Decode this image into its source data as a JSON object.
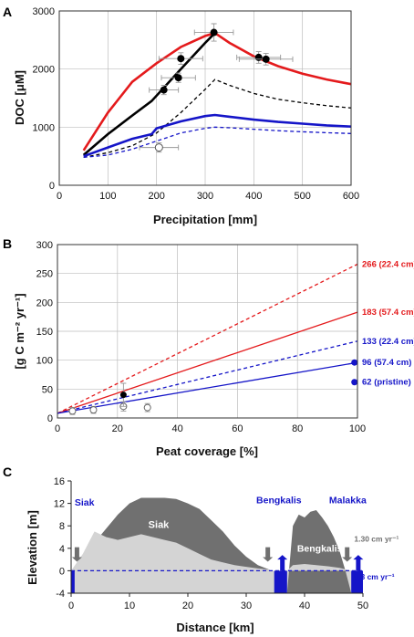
{
  "colors": {
    "red": "#e41a1c",
    "black": "#000000",
    "blue": "#1515c8",
    "darkgray": "#707070",
    "lightgray": "#d4d4d4",
    "errorbar": "#999999"
  },
  "chart_data": [
    {
      "panel": "A",
      "type": "line",
      "xlabel": "Precipitation [mm]",
      "ylabel": "DOC [μM]",
      "xlim": [
        0,
        600
      ],
      "ylim": [
        0,
        3000
      ],
      "xticks": [
        0,
        100,
        200,
        300,
        400,
        500,
        600
      ],
      "yticks": [
        0,
        1000,
        2000,
        3000
      ],
      "grid": true,
      "series": [
        {
          "style": "solid",
          "color": "red",
          "x": [
            50,
            100,
            150,
            200,
            250,
            300,
            320,
            350,
            400,
            450,
            500,
            550,
            600
          ],
          "y": [
            600,
            1250,
            1780,
            2100,
            2380,
            2570,
            2620,
            2450,
            2220,
            2050,
            1920,
            1820,
            1740
          ]
        },
        {
          "style": "solid",
          "color": "black",
          "x": [
            50,
            100,
            150,
            190,
            250,
            300,
            320
          ],
          "y": [
            520,
            880,
            1200,
            1450,
            2000,
            2450,
            2620
          ]
        },
        {
          "style": "dashed",
          "color": "black",
          "x": [
            50,
            100,
            150,
            200,
            250,
            300,
            320,
            350,
            400,
            450,
            500,
            550,
            600
          ],
          "y": [
            480,
            560,
            680,
            900,
            1250,
            1650,
            1820,
            1720,
            1580,
            1480,
            1420,
            1370,
            1330
          ]
        },
        {
          "style": "solid",
          "color": "blue",
          "x": [
            50,
            100,
            150,
            190,
            200,
            250,
            300,
            320,
            350,
            400,
            450,
            500,
            550,
            600
          ],
          "y": [
            500,
            650,
            800,
            880,
            980,
            1100,
            1190,
            1210,
            1180,
            1130,
            1090,
            1060,
            1030,
            1010
          ]
        },
        {
          "style": "dashed",
          "color": "blue",
          "x": [
            50,
            100,
            150,
            200,
            250,
            300,
            320,
            350,
            400,
            450,
            500,
            550,
            600
          ],
          "y": [
            480,
            520,
            620,
            760,
            900,
            980,
            1000,
            990,
            965,
            940,
            920,
            905,
            890
          ]
        }
      ],
      "points_filled": [
        {
          "x": 215,
          "y": 1640,
          "xerr": 30,
          "yerr": 80
        },
        {
          "x": 245,
          "y": 1850,
          "xerr": 35,
          "yerr": 80
        },
        {
          "x": 250,
          "y": 2180,
          "xerr": 45,
          "yerr": 100
        },
        {
          "x": 318,
          "y": 2630,
          "xerr": 40,
          "yerr": 150
        },
        {
          "x": 410,
          "y": 2200,
          "xerr": 45,
          "yerr": 100
        },
        {
          "x": 425,
          "y": 2170,
          "xerr": 55,
          "yerr": 100
        }
      ],
      "points_open": [
        {
          "x": 205,
          "y": 650,
          "xerr": 40,
          "yerr": 80
        }
      ]
    },
    {
      "panel": "B",
      "type": "line",
      "xlabel": "Peat coverage [%]",
      "ylabel": "[g C m⁻² yr⁻¹]",
      "xlim": [
        0,
        100
      ],
      "ylim": [
        0,
        300
      ],
      "xticks": [
        0,
        20,
        40,
        60,
        80,
        100
      ],
      "yticks": [
        0,
        50,
        100,
        150,
        200,
        250,
        300
      ],
      "grid": true,
      "series": [
        {
          "style": "dashed",
          "color": "red",
          "x": [
            0,
            100
          ],
          "y": [
            8,
            266
          ],
          "label": "266 (22.4 cm)"
        },
        {
          "style": "solid",
          "color": "red",
          "x": [
            0,
            100
          ],
          "y": [
            8,
            183
          ],
          "label": "183 (57.4 cm)"
        },
        {
          "style": "dashed",
          "color": "blue",
          "x": [
            0,
            100
          ],
          "y": [
            8,
            133
          ],
          "label": "133 (22.4 cm)"
        },
        {
          "style": "solid",
          "color": "blue",
          "x": [
            0,
            100
          ],
          "y": [
            8,
            96
          ],
          "label": "96 (57.4 cm)"
        }
      ],
      "blue_points": [
        {
          "x": 99,
          "y": 96
        },
        {
          "x": 99,
          "y": 62,
          "label": "62 (pristine)"
        }
      ],
      "points_filled": [
        {
          "x": 22,
          "y": 40,
          "yerr": 20
        }
      ],
      "points_open": [
        {
          "x": 5,
          "y": 12,
          "yerr": 6
        },
        {
          "x": 12,
          "y": 14,
          "yerr": 6
        },
        {
          "x": 22,
          "y": 20,
          "yerr": 8
        },
        {
          "x": 30,
          "y": 18,
          "yerr": 7
        }
      ]
    },
    {
      "panel": "C",
      "type": "area",
      "xlabel": "Distance [km]",
      "ylabel": "Elevation [m]",
      "xlim": [
        0,
        50
      ],
      "ylim": [
        -4,
        16
      ],
      "xticks": [
        0,
        10,
        20,
        30,
        40,
        50
      ],
      "yticks": [
        -4,
        0,
        4,
        8,
        12,
        16
      ],
      "grid": false,
      "dome_siak": {
        "x": [
          0,
          2,
          4,
          6,
          8,
          10,
          12,
          14,
          16,
          18,
          20,
          22,
          24,
          26,
          28,
          30,
          32,
          34
        ],
        "y": [
          0,
          2,
          5,
          7.5,
          10,
          12,
          13,
          13,
          13,
          12.8,
          12,
          11,
          9,
          7,
          4.5,
          2.5,
          1,
          0.2
        ]
      },
      "mineral_siak": {
        "x": [
          0,
          2,
          4,
          6,
          8,
          10,
          12,
          14,
          16,
          18,
          20,
          22,
          24,
          26,
          28,
          30,
          32,
          34
        ],
        "y": [
          0,
          3,
          7,
          6,
          5.5,
          6,
          6.5,
          6,
          5.5,
          5,
          4,
          3,
          2,
          1.5,
          1,
          0.7,
          0.4,
          0.2
        ]
      },
      "dome_bengkalis": {
        "x": [
          37,
          38,
          39,
          40,
          41,
          42,
          43,
          44,
          45,
          46,
          47,
          48
        ],
        "y": [
          -4,
          8,
          10,
          9.5,
          10.5,
          10.8,
          9.5,
          8,
          6,
          3.5,
          0,
          -4
        ]
      },
      "mineral_bengkalis": {
        "x": [
          37,
          38,
          40,
          42,
          44,
          46,
          48
        ],
        "y": [
          0,
          1,
          1.2,
          1,
          0.8,
          0.5,
          0
        ]
      },
      "channels": [
        [
          0,
          0.6
        ],
        [
          34.8,
          37.0
        ],
        [
          48.0,
          50.0
        ]
      ],
      "gray_arrows_x": [
        1,
        33.7,
        47.3
      ],
      "blue_arrows_x": [
        36.2,
        49.2
      ],
      "labels": {
        "siak_left": "Siak",
        "siak_dome": "Siak",
        "bengkalis_top": "Bengkalis",
        "bengkalis_dome": "Bengkalis",
        "malakka": "Malakka",
        "subsidence": "1.30 cm yr⁻¹",
        "sealevel": "0.3 cm yr⁻¹"
      }
    }
  ]
}
